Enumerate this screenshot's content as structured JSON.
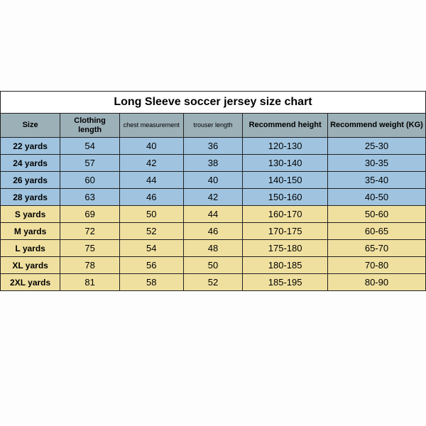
{
  "title": "Long Sleeve soccer jersey size chart",
  "columns": [
    {
      "label": "Size",
      "small": false
    },
    {
      "label": "Clothing length",
      "small": false
    },
    {
      "label": "chest measurement",
      "small": true
    },
    {
      "label": "trouser length",
      "small": true
    },
    {
      "label": "Recommend height",
      "small": false
    },
    {
      "label": "Recommend weight (KG)",
      "small": false
    }
  ],
  "rows": [
    {
      "color": "blue",
      "cells": [
        "22 yards",
        "54",
        "40",
        "36",
        "120-130",
        "25-30"
      ]
    },
    {
      "color": "blue",
      "cells": [
        "24 yards",
        "57",
        "42",
        "38",
        "130-140",
        "30-35"
      ]
    },
    {
      "color": "blue",
      "cells": [
        "26 yards",
        "60",
        "44",
        "40",
        "140-150",
        "35-40"
      ]
    },
    {
      "color": "blue",
      "cells": [
        "28 yards",
        "63",
        "46",
        "42",
        "150-160",
        "40-50"
      ]
    },
    {
      "color": "yellow",
      "cells": [
        "S yards",
        "69",
        "50",
        "44",
        "160-170",
        "50-60"
      ]
    },
    {
      "color": "yellow",
      "cells": [
        "M yards",
        "72",
        "52",
        "46",
        "170-175",
        "60-65"
      ]
    },
    {
      "color": "yellow",
      "cells": [
        "L yards",
        "75",
        "54",
        "48",
        "175-180",
        "65-70"
      ]
    },
    {
      "color": "yellow",
      "cells": [
        "XL yards",
        "78",
        "56",
        "50",
        "180-185",
        "70-80"
      ]
    },
    {
      "color": "yellow",
      "cells": [
        "2XL yards",
        "81",
        "58",
        "52",
        "185-195",
        "80-90"
      ]
    }
  ],
  "colors": {
    "header_bg": "#9cb0b8",
    "blue_row": "#a0c4e0",
    "yellow_row": "#f0e0a0",
    "border": "#222222",
    "page_bg": "#fdfdfd",
    "title_bg": "#ffffff"
  }
}
